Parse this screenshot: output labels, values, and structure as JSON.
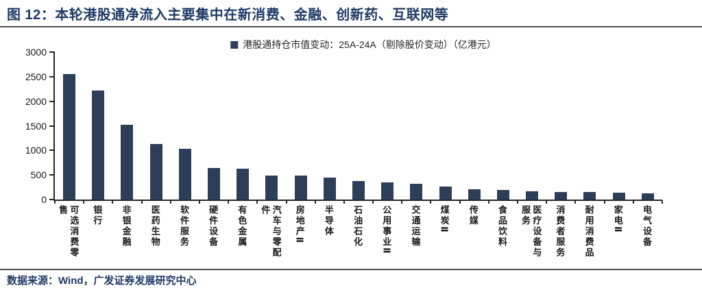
{
  "figure": {
    "title": "图 12：本轮港股通净流入主要集中在新消费、金融、创新药、互联网等",
    "source": "数据来源：Wind，广发证券发展研究中心"
  },
  "colors": {
    "bar": "#2d3e58",
    "title_navy": "#1e3a66",
    "axis": "#262626",
    "rule_gray": "#4d4d4d"
  },
  "chart_data": {
    "type": "bar",
    "title": "港股通持仓市值变动：25A-24A（剔除股价变动）（亿港元）",
    "legend_label": "港股通持仓市值变动：25A-24A（剔除股价变动）（亿港元）",
    "unit": "亿港元",
    "legend_position": "top-center",
    "grid": false,
    "categories": [
      "可选消费零售",
      "银行",
      "非银金融",
      "医药生物",
      "软件服务",
      "硬件设备",
      "有色金属",
      "汽车与零配件",
      "房地产Ⅱ",
      "半导体",
      "石油石化",
      "公用事业Ⅱ",
      "交通运输",
      "煤炭Ⅱ",
      "传媒",
      "食品饮料",
      "医疗设备与服务",
      "消费者服务",
      "耐用消费品",
      "家电Ⅱ",
      "电气设备"
    ],
    "values": [
      2550,
      2220,
      1515,
      1135,
      1030,
      645,
      625,
      490,
      485,
      445,
      380,
      345,
      315,
      265,
      210,
      195,
      165,
      155,
      150,
      140,
      130
    ],
    "xlabel": "",
    "ylabel": "",
    "ylim": [
      0,
      3000
    ],
    "yticks": [
      0,
      500,
      1000,
      1500,
      2000,
      2500,
      3000
    ]
  }
}
